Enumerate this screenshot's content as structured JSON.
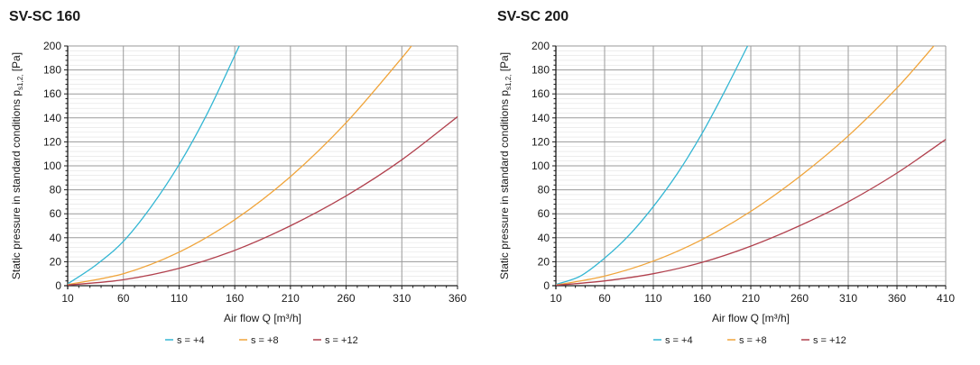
{
  "colors": {
    "s4": "#33b6d3",
    "s8": "#f0a43a",
    "s12": "#b1404d",
    "grid": "#9a9a9a",
    "axis": "#1a1a1a"
  },
  "chart_data": [
    {
      "type": "line",
      "title": "SV-SC 160",
      "xlabel": "Air flow Q [m³/h]",
      "ylabel_main": "Static pressure in standard conditions p",
      "ylabel_sub": "s1,2,",
      "ylabel_unit": " [Pa]",
      "xlim": [
        10,
        360
      ],
      "ylim": [
        0,
        200
      ],
      "xticks": [
        "10",
        "60",
        "110",
        "160",
        "210",
        "260",
        "310",
        "360"
      ],
      "yticks": [
        "0",
        "20",
        "40",
        "60",
        "80",
        "100",
        "120",
        "140",
        "160",
        "180",
        "200"
      ],
      "series": [
        {
          "name": "s = +4",
          "color": "#33b6d3",
          "x": [
            10,
            35,
            60,
            85,
            110,
            135,
            160,
            165
          ],
          "y": [
            1.5,
            17,
            37,
            66,
            101,
            143,
            192,
            202
          ]
        },
        {
          "name": "s = +8",
          "color": "#f0a43a",
          "x": [
            10,
            60,
            110,
            160,
            210,
            260,
            310,
            320
          ],
          "y": [
            1,
            10,
            28,
            55,
            91,
            136,
            190,
            202
          ]
        },
        {
          "name": "s = +12",
          "color": "#b1404d",
          "x": [
            10,
            60,
            110,
            160,
            210,
            260,
            310,
            360
          ],
          "y": [
            0.5,
            5,
            14.5,
            29.5,
            50,
            75,
            105,
            141
          ]
        }
      ]
    },
    {
      "type": "line",
      "title": "SV-SC 200",
      "xlabel": "Air flow Q [m³/h]",
      "ylabel_main": "Static pressure in standard conditions p",
      "ylabel_sub": "s1,2,",
      "ylabel_unit": " [Pa]",
      "xlim": [
        10,
        410
      ],
      "ylim": [
        0,
        200
      ],
      "xticks": [
        "10",
        "60",
        "110",
        "160",
        "210",
        "260",
        "310",
        "360",
        "410"
      ],
      "yticks": [
        "0",
        "20",
        "40",
        "60",
        "80",
        "100",
        "120",
        "140",
        "160",
        "180",
        "200"
      ],
      "series": [
        {
          "name": "s = +4",
          "color": "#33b6d3",
          "x": [
            10,
            35,
            60,
            85,
            110,
            135,
            160,
            185,
            208
          ],
          "y": [
            1,
            8,
            23,
            42,
            66,
            94,
            127,
            165,
            202
          ]
        },
        {
          "name": "s = +8",
          "color": "#f0a43a",
          "x": [
            10,
            60,
            110,
            160,
            210,
            260,
            310,
            360,
            400
          ],
          "y": [
            0.5,
            8,
            20.5,
            38.5,
            62,
            91,
            125,
            165,
            202
          ]
        },
        {
          "name": "s = +12",
          "color": "#b1404d",
          "x": [
            10,
            60,
            110,
            160,
            210,
            260,
            310,
            360,
            410
          ],
          "y": [
            0.3,
            4,
            10,
            19.5,
            33,
            50,
            70,
            94,
            122
          ]
        }
      ]
    }
  ]
}
